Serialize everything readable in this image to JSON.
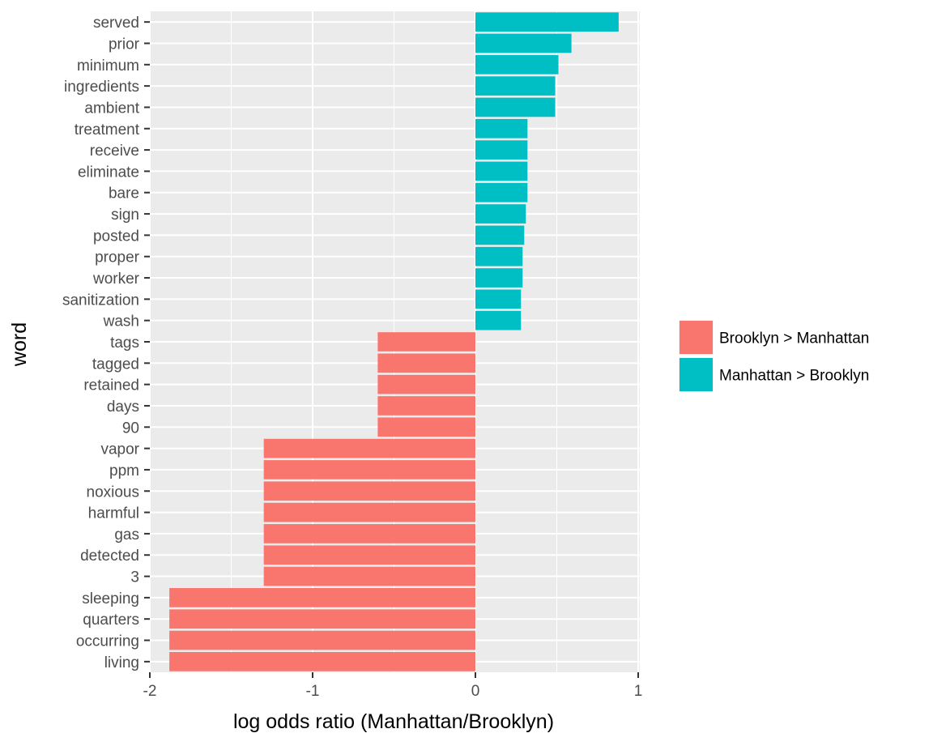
{
  "chart_data": {
    "type": "bar",
    "orientation": "horizontal",
    "xlabel": "log odds ratio (Manhattan/Brooklyn)",
    "ylabel": "word",
    "xlim": [
      -2.0,
      1.0
    ],
    "x_ticks": [
      "-2",
      "-1",
      "0",
      "1"
    ],
    "grid": true,
    "legend_position": "right",
    "legend": [
      {
        "name": "Brooklyn > Manhattan",
        "color": "#F8766D"
      },
      {
        "name": "Manhattan > Brooklyn",
        "color": "#00BFC4"
      }
    ],
    "categories": [
      "served",
      "prior",
      "minimum",
      "ingredients",
      "ambient",
      "treatment",
      "receive",
      "eliminate",
      "bare",
      "sign",
      "posted",
      "proper",
      "worker",
      "sanitization",
      "wash",
      "tags",
      "tagged",
      "retained",
      "days",
      "90",
      "vapor",
      "ppm",
      "noxious",
      "harmful",
      "gas",
      "detected",
      "3",
      "sleeping",
      "quarters",
      "occurring",
      "living"
    ],
    "values": [
      0.88,
      0.59,
      0.51,
      0.49,
      0.49,
      0.32,
      0.32,
      0.32,
      0.32,
      0.31,
      0.3,
      0.29,
      0.29,
      0.28,
      0.28,
      -0.6,
      -0.6,
      -0.6,
      -0.6,
      -0.6,
      -1.3,
      -1.3,
      -1.3,
      -1.3,
      -1.3,
      -1.3,
      -1.3,
      -1.88,
      -1.88,
      -1.88,
      -1.88
    ],
    "groups": [
      "Manhattan > Brooklyn",
      "Manhattan > Brooklyn",
      "Manhattan > Brooklyn",
      "Manhattan > Brooklyn",
      "Manhattan > Brooklyn",
      "Manhattan > Brooklyn",
      "Manhattan > Brooklyn",
      "Manhattan > Brooklyn",
      "Manhattan > Brooklyn",
      "Manhattan > Brooklyn",
      "Manhattan > Brooklyn",
      "Manhattan > Brooklyn",
      "Manhattan > Brooklyn",
      "Manhattan > Brooklyn",
      "Manhattan > Brooklyn",
      "Brooklyn > Manhattan",
      "Brooklyn > Manhattan",
      "Brooklyn > Manhattan",
      "Brooklyn > Manhattan",
      "Brooklyn > Manhattan",
      "Brooklyn > Manhattan",
      "Brooklyn > Manhattan",
      "Brooklyn > Manhattan",
      "Brooklyn > Manhattan",
      "Brooklyn > Manhattan",
      "Brooklyn > Manhattan",
      "Brooklyn > Manhattan",
      "Brooklyn > Manhattan",
      "Brooklyn > Manhattan",
      "Brooklyn > Manhattan",
      "Brooklyn > Manhattan"
    ]
  },
  "colors": {
    "panel_background": "#EBEBEB",
    "grid": "#FFFFFF",
    "tick_text": "#4D4D4D"
  }
}
